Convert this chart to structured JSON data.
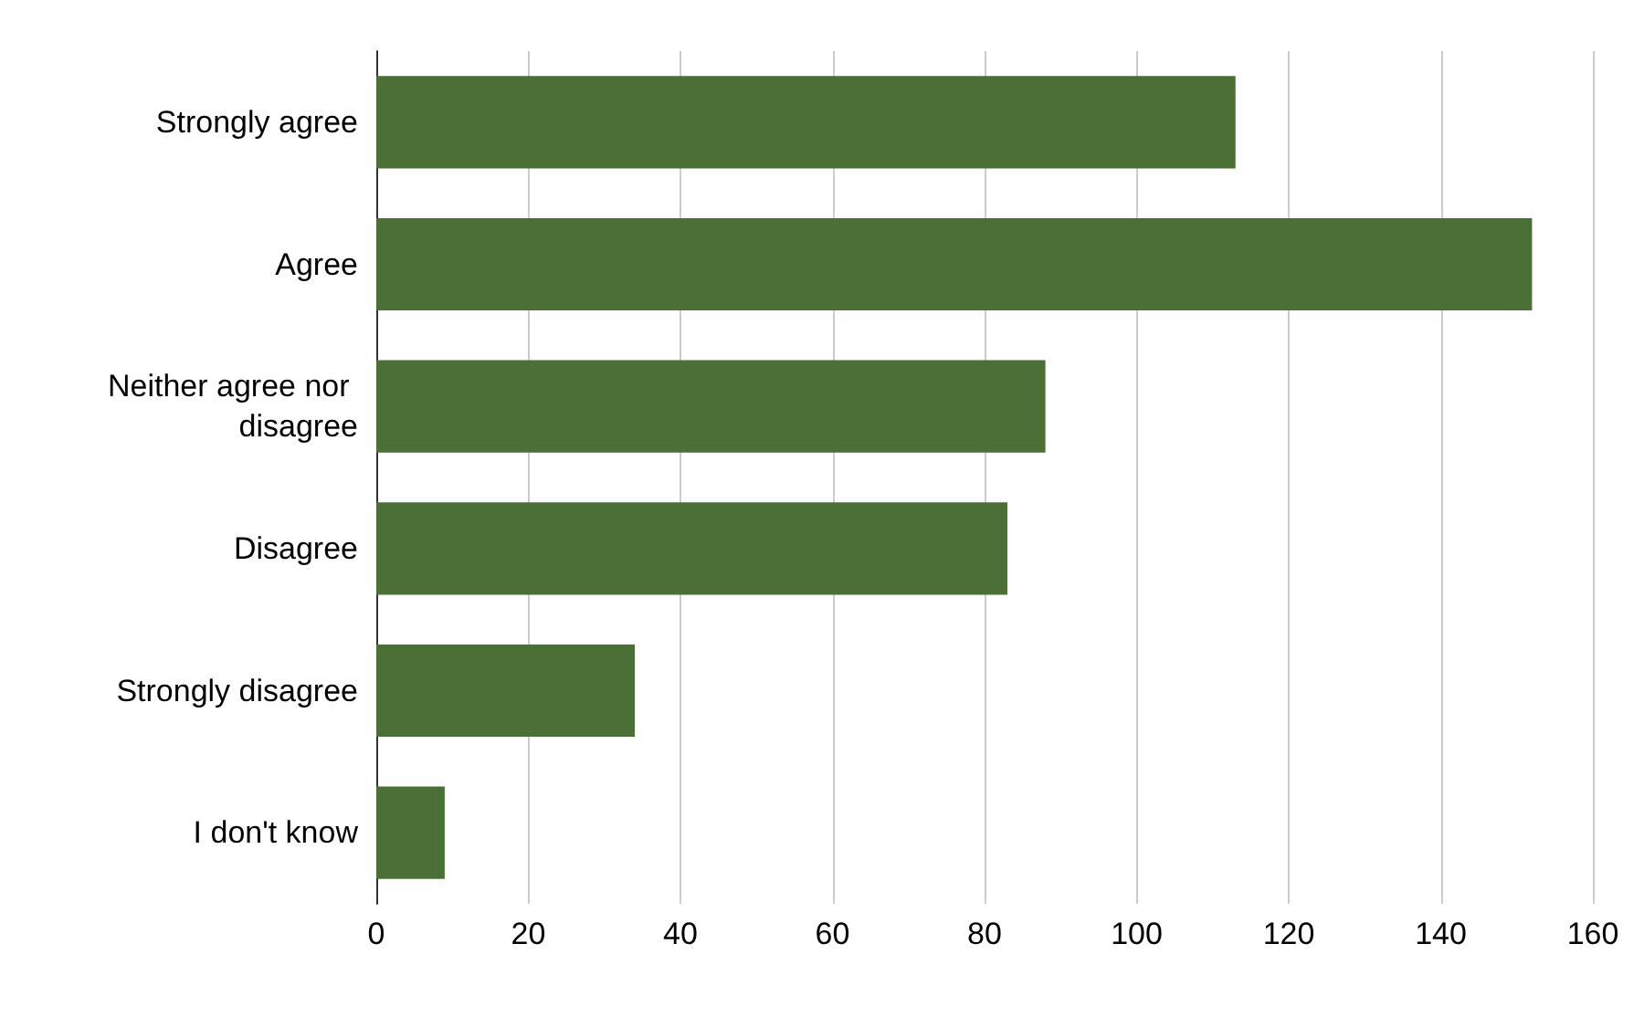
{
  "chart_data": {
    "type": "bar",
    "orientation": "horizontal",
    "categories": [
      "Strongly agree",
      "Agree",
      "Neither agree nor disagree",
      "Disagree",
      "Strongly disagree",
      "I don't know"
    ],
    "values": [
      113,
      152,
      88,
      83,
      34,
      9
    ],
    "color": "#4a7035",
    "xlim": [
      0,
      160
    ],
    "xticks": [
      0,
      20,
      40,
      60,
      80,
      100,
      120,
      140,
      160
    ],
    "grid": "x"
  }
}
